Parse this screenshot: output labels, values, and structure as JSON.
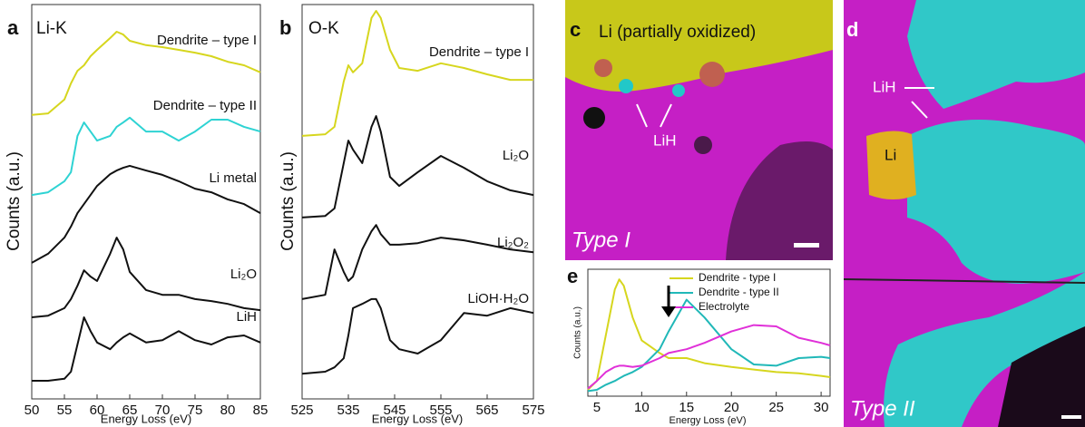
{
  "chart_data": [
    {
      "type": "line",
      "panel": "a",
      "title": "Li-K",
      "xlabel": "Energy Loss (eV)",
      "ylabel": "Counts (a.u.)",
      "xlim": [
        50,
        85
      ],
      "xticks": [
        50,
        55,
        60,
        65,
        70,
        75,
        80,
        85
      ],
      "ylim": [
        0,
        100
      ],
      "x": [
        50,
        52.5,
        55,
        56,
        57,
        58,
        59,
        60,
        62,
        63,
        64,
        65,
        67.5,
        70,
        72.5,
        75,
        77.5,
        80,
        82.5,
        85
      ],
      "series": [
        {
          "name": "Dendrite – type I",
          "color": "#d6d61e",
          "values": [
            72,
            72.4,
            75.9,
            80,
            83.2,
            84.6,
            86.9,
            88.5,
            91.5,
            93.1,
            92.4,
            90.8,
            89.7,
            89.2,
            88.5,
            87.8,
            86.9,
            85.5,
            84.6,
            82.8
          ]
        },
        {
          "name": "Dendrite – type II",
          "color": "#2ed3d3",
          "values": [
            51.7,
            52.4,
            55.2,
            57.5,
            66.7,
            70.1,
            67.8,
            65.5,
            66.7,
            69,
            70.1,
            71.3,
            67.8,
            67.8,
            65.5,
            67.8,
            70.8,
            70.8,
            69,
            67.8
          ]
        },
        {
          "name": "Li metal",
          "color": "#111111",
          "values": [
            34.5,
            36.8,
            40.9,
            43.7,
            47.1,
            49.4,
            51.7,
            54,
            57,
            57.9,
            58.6,
            59.1,
            57.9,
            56.8,
            55.2,
            53.3,
            52.4,
            50.6,
            49.4,
            47.1
          ]
        },
        {
          "name": "Li₂O",
          "color": "#111111",
          "values": [
            20.7,
            21.1,
            23,
            25.3,
            28.7,
            32.6,
            31,
            29.9,
            36.8,
            40.9,
            37.9,
            32.2,
            27.6,
            26.4,
            26.4,
            25.3,
            24.8,
            24.1,
            23,
            22.5
          ]
        },
        {
          "name": "LiH",
          "color": "#111111",
          "values": [
            4.6,
            4.6,
            5.1,
            6.9,
            13.8,
            20.7,
            17.2,
            14.3,
            12.6,
            14.3,
            15.6,
            16.6,
            14.3,
            14.9,
            17.2,
            14.9,
            13.8,
            15.6,
            16.1,
            14.3
          ]
        }
      ]
    },
    {
      "type": "line",
      "panel": "b",
      "title": "O-K",
      "xlabel": "Energy Loss (eV)",
      "ylabel": "Counts (a.u.)",
      "xlim": [
        525,
        575
      ],
      "xticks": [
        525,
        535,
        545,
        555,
        565,
        575
      ],
      "ylim": [
        0,
        100
      ],
      "x": [
        525,
        530,
        532,
        534,
        535,
        536,
        538,
        540,
        541,
        542,
        544,
        546,
        550,
        555,
        560,
        565,
        570,
        575
      ],
      "series": [
        {
          "name": "Dendrite – type I",
          "color": "#d6d61e",
          "values": [
            66.7,
            67.1,
            69,
            80.5,
            84.6,
            82.8,
            85.1,
            96.6,
            98.4,
            96.6,
            88.5,
            83.9,
            83.2,
            85.1,
            83.9,
            82.3,
            80.9,
            80.9
          ]
        },
        {
          "name": "Li₂O",
          "color": "#111111",
          "values": [
            46,
            46.4,
            48.3,
            59.8,
            65.5,
            63.2,
            59.8,
            69,
            71.7,
            67.8,
            56.3,
            54,
            57.5,
            61.6,
            58.6,
            55.2,
            52.9,
            51.7
          ]
        },
        {
          "name": "Li₂O₂",
          "color": "#111111",
          "values": [
            25.3,
            26.4,
            37.9,
            32.2,
            29.9,
            31,
            37.9,
            42.5,
            44.1,
            41.8,
            39.1,
            39.1,
            39.5,
            40.9,
            40.2,
            39.1,
            37.9,
            37.2
          ]
        },
        {
          "name": "LiOH·H₂O",
          "color": "#111111",
          "values": [
            6.4,
            6.9,
            8,
            10.3,
            16.1,
            23,
            24.1,
            25.3,
            25.3,
            23,
            14.9,
            12.6,
            11.5,
            14.9,
            21.8,
            21.1,
            23,
            21.8
          ]
        }
      ]
    },
    {
      "type": "line",
      "panel": "e",
      "xlabel": "Energy Loss (eV)",
      "ylabel": "Counts (a.u.)",
      "xlim": [
        4,
        31
      ],
      "xticks": [
        5,
        10,
        15,
        20,
        25,
        30
      ],
      "ylim": [
        0,
        1
      ],
      "x": [
        4,
        5,
        6,
        7,
        7.5,
        8,
        9,
        10,
        12,
        13,
        15,
        17,
        20,
        22.5,
        25,
        27.5,
        30,
        31
      ],
      "series": [
        {
          "name": "Dendrite - type I",
          "color": "#d6d61e",
          "values": [
            0.05,
            0.12,
            0.48,
            0.84,
            0.92,
            0.87,
            0.62,
            0.44,
            0.34,
            0.3,
            0.3,
            0.26,
            0.23,
            0.21,
            0.19,
            0.18,
            0.16,
            0.15
          ]
        },
        {
          "name": "Dendrite - type II",
          "color": "#20b8b8",
          "values": [
            0.04,
            0.05,
            0.09,
            0.12,
            0.14,
            0.16,
            0.19,
            0.23,
            0.37,
            0.51,
            0.76,
            0.62,
            0.37,
            0.25,
            0.24,
            0.3,
            0.31,
            0.3
          ]
        },
        {
          "name": "Electrolyte",
          "color": "#e030d8",
          "values": [
            0.06,
            0.12,
            0.19,
            0.23,
            0.24,
            0.24,
            0.23,
            0.24,
            0.3,
            0.34,
            0.37,
            0.42,
            0.51,
            0.56,
            0.55,
            0.46,
            0.42,
            0.4
          ]
        }
      ]
    }
  ],
  "images": [
    {
      "panel": "c",
      "labels": [
        "Li (partially oxidized)",
        "LiH"
      ],
      "caption": "Type I"
    },
    {
      "panel": "d",
      "labels": [
        "LiH",
        "Li"
      ],
      "caption": "Type II"
    }
  ]
}
